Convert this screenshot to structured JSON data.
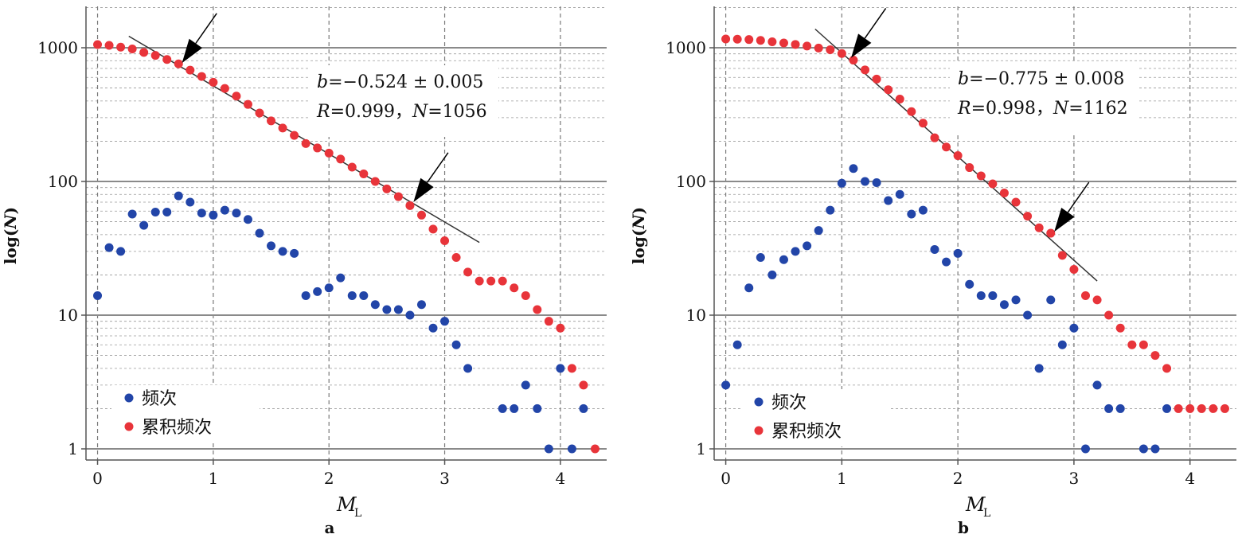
{
  "colors": {
    "frequency": "#2245a8",
    "cumulative": "#e8343a",
    "fit_line": "#333333",
    "arrow": "#000000"
  },
  "chart_data": [
    {
      "type": "scatter",
      "panel_label": "a",
      "xlabel": "M",
      "xlabel_subscript": "L",
      "ylabel_prefix": "log(",
      "ylabel_var": "N",
      "ylabel_suffix": ")",
      "y_scale": "log",
      "xlim": [
        -0.1,
        4.4
      ],
      "ylim": [
        1,
        2000
      ],
      "x_ticks": [
        0,
        1,
        2,
        3,
        4
      ],
      "x_tick_labels": [
        "0",
        "1",
        "2",
        "3",
        "4"
      ],
      "y_ticks": [
        1,
        10,
        100,
        1000
      ],
      "y_tick_labels": [
        "1",
        "10",
        "100",
        "1000"
      ],
      "grid": true,
      "legend_position": "bottom-left",
      "annotation": {
        "b_var": "b",
        "b_text": "=−0.524 ± 0.005",
        "r_var": "R",
        "r_text": "=0.999，",
        "n_var": "N",
        "n_text": "=1056"
      },
      "fit_line": {
        "x": [
          0.27,
          3.3
        ],
        "y": [
          1220,
          35
        ]
      },
      "arrows": [
        {
          "x": 0.73,
          "y": 770
        },
        {
          "x": 2.73,
          "y": 70
        }
      ],
      "series": [
        {
          "name": "频次",
          "color_key": "frequency",
          "points": [
            [
              0,
              14
            ],
            [
              0.1,
              32
            ],
            [
              0.2,
              30
            ],
            [
              0.3,
              57
            ],
            [
              0.4,
              47
            ],
            [
              0.5,
              59
            ],
            [
              0.6,
              59
            ],
            [
              0.7,
              78
            ],
            [
              0.8,
              70
            ],
            [
              0.9,
              58
            ],
            [
              1.0,
              56
            ],
            [
              1.1,
              61
            ],
            [
              1.2,
              58
            ],
            [
              1.3,
              52
            ],
            [
              1.4,
              41
            ],
            [
              1.5,
              33
            ],
            [
              1.6,
              30
            ],
            [
              1.7,
              29
            ],
            [
              1.8,
              14
            ],
            [
              1.9,
              15
            ],
            [
              2.0,
              16
            ],
            [
              2.1,
              19
            ],
            [
              2.2,
              14
            ],
            [
              2.3,
              14
            ],
            [
              2.4,
              12
            ],
            [
              2.5,
              11
            ],
            [
              2.6,
              11
            ],
            [
              2.7,
              10
            ],
            [
              2.8,
              12
            ],
            [
              2.9,
              8
            ],
            [
              3.0,
              9
            ],
            [
              3.1,
              6
            ],
            [
              3.2,
              4
            ],
            [
              3.5,
              2
            ],
            [
              3.6,
              2
            ],
            [
              3.7,
              3
            ],
            [
              3.8,
              2
            ],
            [
              3.9,
              1
            ],
            [
              4.0,
              4
            ],
            [
              4.1,
              1
            ],
            [
              4.2,
              2
            ]
          ]
        },
        {
          "name": "累积频次",
          "color_key": "cumulative",
          "points": [
            [
              0,
              1056
            ],
            [
              0.1,
              1042
            ],
            [
              0.2,
              1010
            ],
            [
              0.3,
              980
            ],
            [
              0.4,
              923
            ],
            [
              0.5,
              876
            ],
            [
              0.6,
              817
            ],
            [
              0.7,
              758
            ],
            [
              0.8,
              680
            ],
            [
              0.9,
              610
            ],
            [
              1.0,
              552
            ],
            [
              1.1,
              496
            ],
            [
              1.2,
              435
            ],
            [
              1.3,
              377
            ],
            [
              1.4,
              325
            ],
            [
              1.5,
              284
            ],
            [
              1.6,
              251
            ],
            [
              1.7,
              221
            ],
            [
              1.8,
              192
            ],
            [
              1.9,
              178
            ],
            [
              2.0,
              163
            ],
            [
              2.1,
              147
            ],
            [
              2.2,
              128
            ],
            [
              2.3,
              114
            ],
            [
              2.4,
              100
            ],
            [
              2.5,
              88
            ],
            [
              2.6,
              77
            ],
            [
              2.7,
              66
            ],
            [
              2.8,
              56
            ],
            [
              2.9,
              44
            ],
            [
              3.0,
              36
            ],
            [
              3.1,
              27
            ],
            [
              3.2,
              21
            ],
            [
              3.3,
              18
            ],
            [
              3.4,
              18
            ],
            [
              3.5,
              18
            ],
            [
              3.6,
              16
            ],
            [
              3.7,
              14
            ],
            [
              3.8,
              11
            ],
            [
              3.9,
              9
            ],
            [
              4.0,
              8
            ],
            [
              4.1,
              4
            ],
            [
              4.2,
              3
            ],
            [
              4.3,
              1
            ]
          ]
        }
      ]
    },
    {
      "type": "scatter",
      "panel_label": "b",
      "xlabel": "M",
      "xlabel_subscript": "L",
      "ylabel_prefix": "log(",
      "ylabel_var": "N",
      "ylabel_suffix": ")",
      "y_scale": "log",
      "xlim": [
        -0.1,
        4.4
      ],
      "ylim": [
        1,
        2000
      ],
      "x_ticks": [
        0,
        1,
        2,
        3,
        4
      ],
      "x_tick_labels": [
        "0",
        "1",
        "2",
        "3",
        "4"
      ],
      "y_ticks": [
        1,
        10,
        100,
        1000
      ],
      "y_tick_labels": [
        "1",
        "10",
        "100",
        "1000"
      ],
      "grid": true,
      "legend_position": "bottom-left",
      "annotation": {
        "b_var": "b",
        "b_text": "=−0.775 ± 0.008",
        "r_var": "R",
        "r_text": "=0.998，",
        "n_var": "N",
        "n_text": "=1162"
      },
      "fit_line": {
        "x": [
          0.77,
          3.2
        ],
        "y": [
          1380,
          18
        ]
      },
      "arrows": [
        {
          "x": 1.08,
          "y": 840
        },
        {
          "x": 2.83,
          "y": 42
        }
      ],
      "series": [
        {
          "name": "频次",
          "color_key": "frequency",
          "points": [
            [
              0,
              3
            ],
            [
              0.1,
              6
            ],
            [
              0.2,
              16
            ],
            [
              0.3,
              27
            ],
            [
              0.4,
              20
            ],
            [
              0.5,
              26
            ],
            [
              0.6,
              30
            ],
            [
              0.7,
              33
            ],
            [
              0.8,
              43
            ],
            [
              0.9,
              61
            ],
            [
              1.0,
              97
            ],
            [
              1.1,
              125
            ],
            [
              1.2,
              100
            ],
            [
              1.3,
              98
            ],
            [
              1.4,
              72
            ],
            [
              1.5,
              80
            ],
            [
              1.6,
              57
            ],
            [
              1.7,
              61
            ],
            [
              1.8,
              31
            ],
            [
              1.9,
              25
            ],
            [
              2.0,
              29
            ],
            [
              2.1,
              17
            ],
            [
              2.2,
              14
            ],
            [
              2.3,
              14
            ],
            [
              2.4,
              12
            ],
            [
              2.5,
              13
            ],
            [
              2.6,
              10
            ],
            [
              2.7,
              4
            ],
            [
              2.8,
              13
            ],
            [
              2.9,
              6
            ],
            [
              3.0,
              8
            ],
            [
              3.1,
              1
            ],
            [
              3.2,
              3
            ],
            [
              3.3,
              2
            ],
            [
              3.4,
              2
            ],
            [
              3.6,
              1
            ],
            [
              3.7,
              1
            ],
            [
              3.8,
              2
            ]
          ]
        },
        {
          "name": "累积频次",
          "color_key": "cumulative",
          "points": [
            [
              0,
              1162
            ],
            [
              0.1,
              1158
            ],
            [
              0.2,
              1152
            ],
            [
              0.3,
              1135
            ],
            [
              0.4,
              1108
            ],
            [
              0.5,
              1085
            ],
            [
              0.6,
              1059
            ],
            [
              0.7,
              1030
            ],
            [
              0.8,
              995
            ],
            [
              0.9,
              966
            ],
            [
              1.0,
              905
            ],
            [
              1.1,
              808
            ],
            [
              1.2,
              683
            ],
            [
              1.3,
              583
            ],
            [
              1.4,
              485
            ],
            [
              1.5,
              413
            ],
            [
              1.6,
              333
            ],
            [
              1.7,
              273
            ],
            [
              1.8,
              212
            ],
            [
              1.9,
              181
            ],
            [
              2.0,
              156
            ],
            [
              2.1,
              127
            ],
            [
              2.2,
              110
            ],
            [
              2.3,
              96
            ],
            [
              2.4,
              82
            ],
            [
              2.5,
              70
            ],
            [
              2.6,
              55
            ],
            [
              2.7,
              45
            ],
            [
              2.8,
              41
            ],
            [
              2.9,
              28
            ],
            [
              3.0,
              22
            ],
            [
              3.1,
              14
            ],
            [
              3.2,
              13
            ],
            [
              3.3,
              10
            ],
            [
              3.4,
              8
            ],
            [
              3.5,
              6
            ],
            [
              3.6,
              6
            ],
            [
              3.7,
              5
            ],
            [
              3.8,
              4
            ],
            [
              3.9,
              2
            ],
            [
              4.0,
              2
            ],
            [
              4.1,
              2
            ],
            [
              4.2,
              2
            ],
            [
              4.3,
              2
            ]
          ]
        }
      ]
    }
  ]
}
